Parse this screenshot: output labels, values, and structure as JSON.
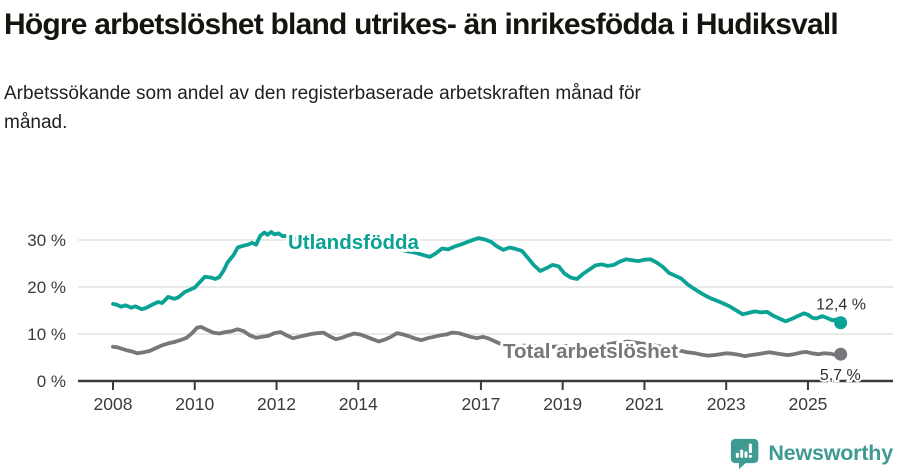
{
  "header": {
    "title": "Högre arbetslöshet bland utrikes- än inrikesfödda i Hudiksvall",
    "subtitle": "Arbetssökande som andel av den registerbaserade arbetskraften månad för månad."
  },
  "footer": {
    "brand": "Newsworthy",
    "brand_color": "#3f9a92",
    "logo_icon": "newsworthy-speech-bubble-bar-chart-icon"
  },
  "colors": {
    "foreign_born_line": "#0aa295",
    "total_line": "#77777b",
    "axis": "#3b3b3b",
    "gridline": "#e2e2e2",
    "value_label_text": "#2e2e2e"
  },
  "chart_data": {
    "type": "line",
    "title": "Högre arbetslöshet bland utrikes- än inrikesfödda i Hudiksvall",
    "subtitle": "Arbetssökande som andel av den registerbaserade arbetskraften månad för månad.",
    "xlabel": "",
    "ylabel": "",
    "x_unit": "year (monthly data)",
    "y_unit": "percent",
    "xlim": [
      2007.15,
      2027.1
    ],
    "ylim": [
      0,
      33.5
    ],
    "grid": "horizontal",
    "legend_position": "inline-on-line",
    "x_ticks": [
      2008,
      2010,
      2012,
      2014,
      2017,
      2019,
      2021,
      2023,
      2025
    ],
    "y_ticks": [
      0,
      10,
      20,
      30
    ],
    "y_tick_suffix": " %",
    "series": [
      {
        "name": "Utlandsfödda",
        "color": "#0aa295",
        "end_label": "12,4 %",
        "end_value": 12.4,
        "points": [
          [
            2008,
            16.4
          ],
          [
            2008.1,
            16.2
          ],
          [
            2008.2,
            15.8
          ],
          [
            2008.3,
            16.1
          ],
          [
            2008.45,
            15.6
          ],
          [
            2008.55,
            15.9
          ],
          [
            2008.7,
            15.3
          ],
          [
            2008.8,
            15.5
          ],
          [
            2008.95,
            16.2
          ],
          [
            2009.1,
            16.8
          ],
          [
            2009.2,
            16.6
          ],
          [
            2009.35,
            17.9
          ],
          [
            2009.5,
            17.5
          ],
          [
            2009.6,
            17.8
          ],
          [
            2009.75,
            18.9
          ],
          [
            2009.9,
            19.5
          ],
          [
            2010,
            19.9
          ],
          [
            2010.1,
            20.8
          ],
          [
            2010.25,
            22.2
          ],
          [
            2010.4,
            22
          ],
          [
            2010.5,
            21.7
          ],
          [
            2010.6,
            22.1
          ],
          [
            2010.7,
            23.4
          ],
          [
            2010.8,
            25.2
          ],
          [
            2010.95,
            26.8
          ],
          [
            2011.05,
            28.4
          ],
          [
            2011.2,
            28.8
          ],
          [
            2011.3,
            29
          ],
          [
            2011.4,
            29.4
          ],
          [
            2011.5,
            29
          ],
          [
            2011.6,
            30.9
          ],
          [
            2011.7,
            31.6
          ],
          [
            2011.78,
            31.1
          ],
          [
            2011.87,
            31.7
          ],
          [
            2011.95,
            31.2
          ],
          [
            2012.05,
            31.4
          ],
          [
            2012.15,
            30.8
          ],
          [
            2012.3,
            30.9
          ],
          [
            2012.45,
            30.3
          ],
          [
            2012.6,
            30
          ],
          [
            2012.8,
            30.4
          ],
          [
            2013,
            30.6
          ],
          [
            2013.2,
            30
          ],
          [
            2013.4,
            29.5
          ],
          [
            2013.6,
            29.8
          ],
          [
            2013.8,
            30.1
          ],
          [
            2014,
            29.9
          ],
          [
            2014.2,
            29.4
          ],
          [
            2014.4,
            28.9
          ],
          [
            2014.6,
            28.5
          ],
          [
            2014.8,
            28.4
          ],
          [
            2015,
            28
          ],
          [
            2015.2,
            27.6
          ],
          [
            2015.4,
            27.3
          ],
          [
            2015.55,
            26.9
          ],
          [
            2015.75,
            26.4
          ],
          [
            2015.9,
            27.2
          ],
          [
            2016.05,
            28.2
          ],
          [
            2016.2,
            28
          ],
          [
            2016.35,
            28.6
          ],
          [
            2016.5,
            29
          ],
          [
            2016.65,
            29.5
          ],
          [
            2016.8,
            30
          ],
          [
            2016.95,
            30.4
          ],
          [
            2017.1,
            30.1
          ],
          [
            2017.25,
            29.6
          ],
          [
            2017.4,
            28.6
          ],
          [
            2017.55,
            27.9
          ],
          [
            2017.7,
            28.4
          ],
          [
            2017.85,
            28.1
          ],
          [
            2018,
            27.7
          ],
          [
            2018.15,
            26.2
          ],
          [
            2018.3,
            24.6
          ],
          [
            2018.45,
            23.4
          ],
          [
            2018.6,
            24
          ],
          [
            2018.75,
            24.7
          ],
          [
            2018.9,
            24.4
          ],
          [
            2019.05,
            22.8
          ],
          [
            2019.2,
            22
          ],
          [
            2019.35,
            21.7
          ],
          [
            2019.5,
            22.8
          ],
          [
            2019.65,
            23.7
          ],
          [
            2019.8,
            24.6
          ],
          [
            2019.95,
            24.8
          ],
          [
            2020.1,
            24.5
          ],
          [
            2020.25,
            24.7
          ],
          [
            2020.4,
            25.4
          ],
          [
            2020.55,
            25.9
          ],
          [
            2020.7,
            25.7
          ],
          [
            2020.85,
            25.5
          ],
          [
            2021,
            25.8
          ],
          [
            2021.15,
            25.9
          ],
          [
            2021.3,
            25.2
          ],
          [
            2021.45,
            24.3
          ],
          [
            2021.6,
            23
          ],
          [
            2021.75,
            22.4
          ],
          [
            2021.9,
            21.8
          ],
          [
            2022.05,
            20.6
          ],
          [
            2022.2,
            19.7
          ],
          [
            2022.35,
            18.9
          ],
          [
            2022.5,
            18.1
          ],
          [
            2022.65,
            17.5
          ],
          [
            2022.8,
            17
          ],
          [
            2022.95,
            16.4
          ],
          [
            2023.1,
            15.8
          ],
          [
            2023.25,
            15
          ],
          [
            2023.4,
            14.2
          ],
          [
            2023.55,
            14.5
          ],
          [
            2023.7,
            14.8
          ],
          [
            2023.85,
            14.6
          ],
          [
            2024,
            14.7
          ],
          [
            2024.15,
            13.9
          ],
          [
            2024.3,
            13.3
          ],
          [
            2024.45,
            12.7
          ],
          [
            2024.6,
            13.2
          ],
          [
            2024.75,
            13.8
          ],
          [
            2024.9,
            14.4
          ],
          [
            2025,
            14.1
          ],
          [
            2025.1,
            13.5
          ],
          [
            2025.2,
            13.3
          ],
          [
            2025.35,
            13.8
          ],
          [
            2025.5,
            13.3
          ],
          [
            2025.6,
            12.9
          ],
          [
            2025.7,
            13.1
          ],
          [
            2025.8,
            12.4
          ]
        ]
      },
      {
        "name": "Total arbetslöshet",
        "color": "#77777b",
        "end_label": "5,7 %",
        "end_value": 5.7,
        "points": [
          [
            2008,
            7.3
          ],
          [
            2008.1,
            7.2
          ],
          [
            2008.2,
            6.9
          ],
          [
            2008.35,
            6.5
          ],
          [
            2008.5,
            6.2
          ],
          [
            2008.6,
            5.9
          ],
          [
            2008.75,
            6.1
          ],
          [
            2008.9,
            6.4
          ],
          [
            2009.05,
            7
          ],
          [
            2009.2,
            7.6
          ],
          [
            2009.35,
            8
          ],
          [
            2009.5,
            8.3
          ],
          [
            2009.65,
            8.7
          ],
          [
            2009.8,
            9.2
          ],
          [
            2009.95,
            10.3
          ],
          [
            2010.05,
            11.3
          ],
          [
            2010.15,
            11.5
          ],
          [
            2010.3,
            10.9
          ],
          [
            2010.45,
            10.3
          ],
          [
            2010.6,
            10.1
          ],
          [
            2010.75,
            10.4
          ],
          [
            2010.9,
            10.6
          ],
          [
            2011.05,
            11
          ],
          [
            2011.2,
            10.6
          ],
          [
            2011.35,
            9.7
          ],
          [
            2011.5,
            9.2
          ],
          [
            2011.65,
            9.4
          ],
          [
            2011.8,
            9.6
          ],
          [
            2011.95,
            10.2
          ],
          [
            2012.1,
            10.4
          ],
          [
            2012.25,
            9.7
          ],
          [
            2012.4,
            9.1
          ],
          [
            2012.55,
            9.4
          ],
          [
            2012.7,
            9.7
          ],
          [
            2012.85,
            10
          ],
          [
            2013,
            10.2
          ],
          [
            2013.15,
            10.3
          ],
          [
            2013.3,
            9.5
          ],
          [
            2013.45,
            8.9
          ],
          [
            2013.6,
            9.2
          ],
          [
            2013.75,
            9.7
          ],
          [
            2013.9,
            10.1
          ],
          [
            2014.05,
            9.9
          ],
          [
            2014.2,
            9.4
          ],
          [
            2014.35,
            8.9
          ],
          [
            2014.5,
            8.4
          ],
          [
            2014.65,
            8.8
          ],
          [
            2014.8,
            9.4
          ],
          [
            2014.95,
            10.2
          ],
          [
            2015.1,
            9.9
          ],
          [
            2015.25,
            9.5
          ],
          [
            2015.4,
            9
          ],
          [
            2015.55,
            8.7
          ],
          [
            2015.7,
            9.1
          ],
          [
            2015.85,
            9.4
          ],
          [
            2016,
            9.7
          ],
          [
            2016.15,
            9.9
          ],
          [
            2016.3,
            10.3
          ],
          [
            2016.45,
            10.2
          ],
          [
            2016.6,
            9.8
          ],
          [
            2016.75,
            9.4
          ],
          [
            2016.9,
            9.1
          ],
          [
            2017.05,
            9.4
          ],
          [
            2017.2,
            9
          ],
          [
            2017.35,
            8.4
          ],
          [
            2017.5,
            7.8
          ],
          [
            2017.65,
            7.2
          ],
          [
            2017.9,
            7.4
          ],
          [
            2018.2,
            7.6
          ],
          [
            2018.5,
            7.1
          ],
          [
            2018.8,
            7.3
          ],
          [
            2019.1,
            7.5
          ],
          [
            2019.4,
            7
          ],
          [
            2019.7,
            7.2
          ],
          [
            2020,
            7.6
          ],
          [
            2020.3,
            8.1
          ],
          [
            2020.6,
            8.4
          ],
          [
            2020.9,
            8
          ],
          [
            2021.2,
            7.7
          ],
          [
            2021.5,
            7.1
          ],
          [
            2021.8,
            6.6
          ],
          [
            2022.05,
            6.1
          ],
          [
            2022.25,
            5.9
          ],
          [
            2022.4,
            5.6
          ],
          [
            2022.55,
            5.4
          ],
          [
            2022.7,
            5.5
          ],
          [
            2022.85,
            5.7
          ],
          [
            2023,
            5.9
          ],
          [
            2023.15,
            5.8
          ],
          [
            2023.3,
            5.6
          ],
          [
            2023.45,
            5.3
          ],
          [
            2023.6,
            5.5
          ],
          [
            2023.75,
            5.7
          ],
          [
            2023.9,
            5.9
          ],
          [
            2024.05,
            6.1
          ],
          [
            2024.2,
            5.9
          ],
          [
            2024.35,
            5.7
          ],
          [
            2024.5,
            5.5
          ],
          [
            2024.65,
            5.7
          ],
          [
            2024.8,
            6
          ],
          [
            2024.95,
            6.2
          ],
          [
            2025.1,
            5.9
          ],
          [
            2025.25,
            5.7
          ],
          [
            2025.4,
            5.9
          ],
          [
            2025.55,
            5.8
          ],
          [
            2025.7,
            5.5
          ],
          [
            2025.8,
            5.7
          ]
        ]
      }
    ],
    "series_labels": [
      {
        "text": "Utlandsfödda",
        "x": 2012.28,
        "y": 28.1,
        "color": "#0aa295"
      },
      {
        "text": "Total arbetslöshet",
        "x": 2017.54,
        "y": 4.9,
        "color": "#77777b"
      }
    ],
    "value_labels": [
      {
        "text": "12,4 %",
        "x": 2025.2,
        "y": 15.2
      },
      {
        "text": "5,7 %",
        "x": 2025.29,
        "y": 0.2
      }
    ]
  }
}
